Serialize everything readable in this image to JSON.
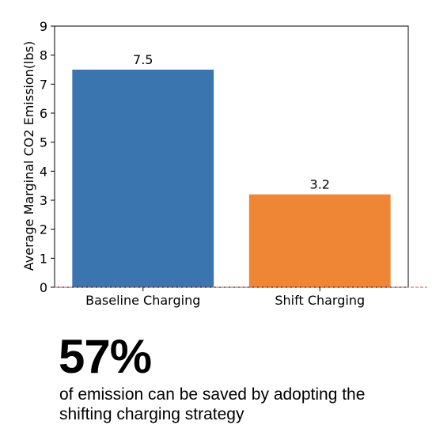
{
  "chart_data": {
    "type": "bar",
    "categories": [
      "Baseline Charging",
      "Shift Charging"
    ],
    "values": [
      7.5,
      3.2
    ],
    "data_labels": [
      "7.5",
      "3.2"
    ],
    "colors": [
      "#3a75af",
      "#ef8636"
    ],
    "ylabel": "Average Marginal CO2 Emission(lbs)",
    "xlabel": "",
    "ylim": [
      0,
      9
    ],
    "yticks": [
      0,
      1,
      2,
      3,
      4,
      5,
      6,
      7,
      8,
      9
    ],
    "baseline_color": "#c0504d",
    "grid": false
  },
  "summary": {
    "stat": "57%",
    "caption": "of emission can be saved by adopting the shifting charging strategy"
  }
}
